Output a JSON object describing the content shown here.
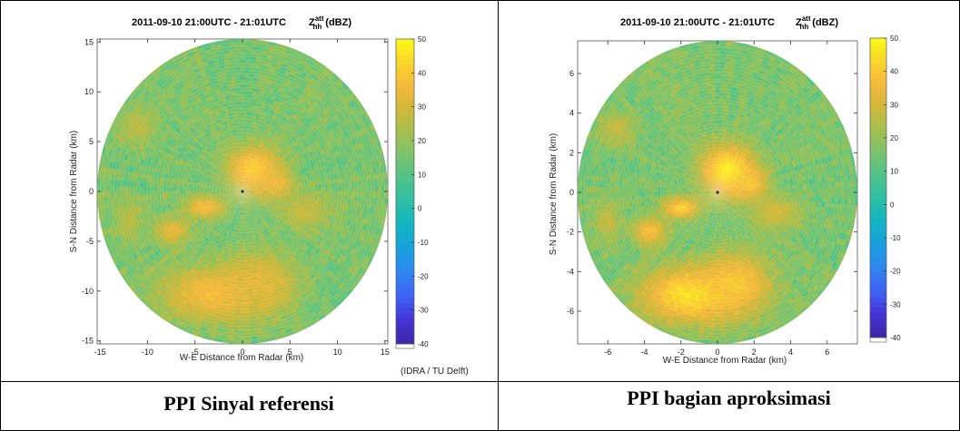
{
  "captions": {
    "left": "PPI Sinyal referensi",
    "right": "PPI bagian aproksimasi"
  },
  "credit": "(IDRA / TU Delft)",
  "colors": {
    "colormap": [
      "#3e26a8",
      "#4433d4",
      "#3e62f4",
      "#2f85f0",
      "#1a9fde",
      "#12b3c4",
      "#2bbfa6",
      "#4ec38a",
      "#77c46f",
      "#a3bf4f",
      "#cfb83a",
      "#f4b93b",
      "#fbd52c",
      "#f9fb15"
    ],
    "background_clutter": "#2bb6a0"
  },
  "chart_data": [
    {
      "type": "heatmap",
      "chart_kind": "ppi-polar",
      "title": "2011-09-10 21:00UTC - 21:01UTC",
      "title_var": "Z",
      "title_var_sup": "att",
      "title_var_sub": "hh",
      "title_unit": "(dBZ)",
      "xlabel": "W-E Distance from Radar (km)",
      "ylabel": "S-N Distance from Radar (km)",
      "xlim": [
        -15.3,
        15.3
      ],
      "ylim": [
        -15.3,
        15.3
      ],
      "radius_km": 15.3,
      "xticks": [
        -15,
        -10,
        -5,
        0,
        5,
        10,
        15
      ],
      "yticks": [
        15,
        10,
        5,
        0,
        -5,
        -10,
        -15
      ],
      "colorbar": {
        "min": -40,
        "max": 50,
        "ticks": [
          50,
          40,
          30,
          20,
          10,
          0,
          -10,
          -20,
          -30,
          -40
        ]
      },
      "noise_seed": 7,
      "echoes": [
        {
          "x": 1.2,
          "y": 2.2,
          "rx": 3.0,
          "ry": 2.6,
          "dbz": 42
        },
        {
          "x": 3.5,
          "y": 0.8,
          "rx": 2.0,
          "ry": 1.6,
          "dbz": 36
        },
        {
          "x": -4.0,
          "y": -1.6,
          "rx": 2.2,
          "ry": 1.2,
          "dbz": 38
        },
        {
          "x": -7.4,
          "y": -4.0,
          "rx": 2.0,
          "ry": 1.5,
          "dbz": 34
        },
        {
          "x": -3.0,
          "y": -10.3,
          "rx": 5.8,
          "ry": 3.0,
          "dbz": 38
        },
        {
          "x": 2.0,
          "y": -9.2,
          "rx": 4.0,
          "ry": 3.2,
          "dbz": 33
        },
        {
          "x": 6.5,
          "y": -2.0,
          "rx": 3.0,
          "ry": 2.0,
          "dbz": 28
        },
        {
          "x": -11.0,
          "y": 6.5,
          "rx": 2.2,
          "ry": 2.0,
          "dbz": 26
        },
        {
          "x": -12.0,
          "y": -3.0,
          "rx": 1.6,
          "ry": 2.2,
          "dbz": 26
        }
      ]
    },
    {
      "type": "heatmap",
      "chart_kind": "ppi-polar",
      "title": "2011-09-10 21:00UTC - 21:01UTC",
      "title_var": "Z",
      "title_var_sup": "att",
      "title_var_sub": "hh",
      "title_unit": "(dBZ)",
      "xlabel": "W-E Distance from Radar (km)",
      "ylabel": "S-N Distance from Radar (km)",
      "xlim": [
        -7.65,
        7.65
      ],
      "ylim": [
        -7.65,
        7.65
      ],
      "radius_km": 7.65,
      "xticks": [
        -6,
        -4,
        -2,
        0,
        2,
        4,
        6
      ],
      "yticks": [
        6,
        4,
        2,
        0,
        -2,
        -4,
        -6
      ],
      "colorbar": {
        "min": -40,
        "max": 50,
        "ticks": [
          50,
          40,
          30,
          20,
          10,
          0,
          -10,
          -20,
          -30,
          -40
        ]
      },
      "noise_seed": 13,
      "echoes": [
        {
          "x": 0.6,
          "y": 1.1,
          "rx": 1.6,
          "ry": 1.4,
          "dbz": 48
        },
        {
          "x": 1.7,
          "y": 0.4,
          "rx": 1.0,
          "ry": 0.8,
          "dbz": 40
        },
        {
          "x": -2.0,
          "y": -0.8,
          "rx": 1.1,
          "ry": 0.6,
          "dbz": 42
        },
        {
          "x": -3.7,
          "y": -2.0,
          "rx": 1.0,
          "ry": 0.8,
          "dbz": 38
        },
        {
          "x": -1.5,
          "y": -5.2,
          "rx": 2.9,
          "ry": 1.5,
          "dbz": 46
        },
        {
          "x": 1.0,
          "y": -4.6,
          "rx": 2.0,
          "ry": 1.6,
          "dbz": 40
        },
        {
          "x": 3.2,
          "y": -1.0,
          "rx": 1.5,
          "ry": 1.0,
          "dbz": 30
        },
        {
          "x": -5.5,
          "y": 3.2,
          "rx": 1.1,
          "ry": 1.0,
          "dbz": 28
        },
        {
          "x": -6.0,
          "y": -1.5,
          "rx": 0.8,
          "ry": 1.1,
          "dbz": 28
        }
      ]
    }
  ]
}
